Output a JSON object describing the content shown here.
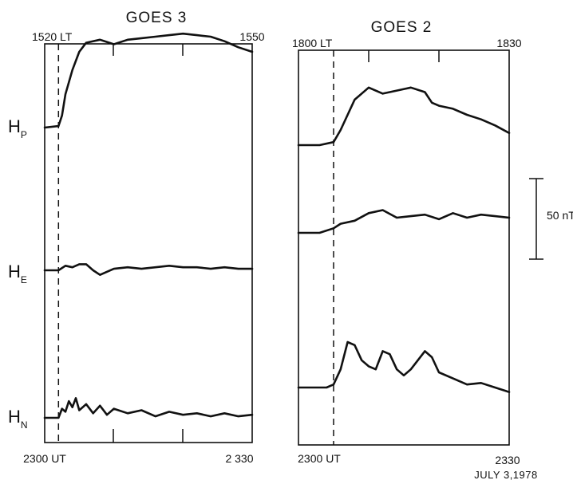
{
  "date_label": "JULY 3,1978",
  "scale_bar": {
    "label": "50 nT",
    "value_nT": 50
  },
  "components": {
    "p": "P",
    "e": "E",
    "n": "N",
    "letter": "H"
  },
  "panels": [
    {
      "title": "GOES 3",
      "lt_start": "1520",
      "lt_unit": "LT",
      "lt_end": "1550",
      "ut_start": "2300",
      "ut_unit": "UT",
      "ut_end": "2 330"
    },
    {
      "title": "GOES 2",
      "lt_start": "1800",
      "lt_unit": "LT",
      "lt_end": "1830",
      "ut_start": "2300",
      "ut_unit": "UT",
      "ut_end": "2330"
    }
  ],
  "chart_data": [
    {
      "type": "line",
      "title": "GOES 3",
      "xlabel": "UT",
      "xlim": [
        0,
        30
      ],
      "ylabel": "",
      "onset_minute": 2,
      "series": [
        {
          "name": "HP",
          "x": [
            0,
            2,
            2.5,
            3,
            4,
            5,
            6,
            8,
            10,
            12,
            14,
            16,
            18,
            20,
            22,
            24,
            26,
            28,
            30
          ],
          "y": [
            0,
            1,
            8,
            22,
            38,
            50,
            56,
            58,
            55,
            58,
            59,
            60,
            61,
            62,
            61,
            60,
            57,
            53,
            50
          ]
        },
        {
          "name": "HE",
          "x": [
            0,
            2,
            3,
            4,
            5,
            6,
            7,
            8,
            10,
            12,
            14,
            16,
            18,
            20,
            22,
            24,
            26,
            28,
            30
          ],
          "y": [
            0,
            0,
            3,
            2,
            4,
            4,
            0,
            -3,
            1,
            2,
            1,
            2,
            3,
            2,
            2,
            1,
            2,
            1,
            1
          ]
        },
        {
          "name": "HN",
          "x": [
            0,
            2,
            2.5,
            3,
            3.5,
            4,
            4.5,
            5,
            6,
            7,
            8,
            9,
            10,
            12,
            14,
            16,
            18,
            20,
            22,
            24,
            26,
            28,
            30
          ],
          "y": [
            0,
            0,
            6,
            4,
            11,
            7,
            13,
            5,
            9,
            3,
            8,
            2,
            6,
            3,
            5,
            1,
            4,
            2,
            3,
            1,
            3,
            1,
            2
          ]
        }
      ]
    },
    {
      "type": "line",
      "title": "GOES 2",
      "xlabel": "UT",
      "xlim": [
        0,
        30
      ],
      "ylabel": "",
      "onset_minute": 5,
      "series": [
        {
          "name": "HP",
          "x": [
            0,
            3,
            5,
            6,
            7,
            8,
            10,
            12,
            14,
            16,
            18,
            19,
            20,
            22,
            24,
            26,
            28,
            30
          ],
          "y": [
            0,
            0,
            2,
            10,
            20,
            30,
            38,
            34,
            36,
            38,
            35,
            28,
            26,
            24,
            20,
            17,
            13,
            8
          ]
        },
        {
          "name": "HE",
          "x": [
            0,
            3,
            5,
            6,
            8,
            10,
            12,
            14,
            16,
            18,
            20,
            22,
            24,
            26,
            28,
            30
          ],
          "y": [
            0,
            0,
            3,
            6,
            8,
            13,
            15,
            10,
            11,
            12,
            9,
            13,
            10,
            12,
            11,
            10
          ]
        },
        {
          "name": "HN",
          "x": [
            0,
            4,
            5,
            6,
            7,
            8,
            9,
            10,
            11,
            12,
            13,
            14,
            15,
            16,
            17,
            18,
            19,
            20,
            22,
            24,
            26,
            28,
            30
          ],
          "y": [
            0,
            0,
            2,
            12,
            30,
            28,
            18,
            14,
            12,
            24,
            22,
            12,
            8,
            12,
            18,
            24,
            20,
            10,
            6,
            2,
            3,
            0,
            -3
          ]
        }
      ]
    }
  ]
}
